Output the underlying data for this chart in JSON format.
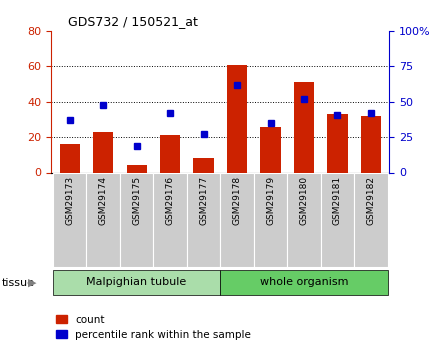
{
  "title": "GDS732 / 150521_at",
  "samples": [
    "GSM29173",
    "GSM29174",
    "GSM29175",
    "GSM29176",
    "GSM29177",
    "GSM29178",
    "GSM29179",
    "GSM29180",
    "GSM29181",
    "GSM29182"
  ],
  "counts": [
    16,
    23,
    4,
    21,
    8,
    61,
    26,
    51,
    33,
    32
  ],
  "percentiles": [
    37,
    48,
    19,
    42,
    27,
    62,
    35,
    52,
    41,
    42
  ],
  "bar_color": "#cc2200",
  "dot_color": "#0000cc",
  "left_ylim": [
    0,
    80
  ],
  "right_ylim": [
    0,
    100
  ],
  "left_yticks": [
    0,
    20,
    40,
    60,
    80
  ],
  "right_yticks": [
    0,
    25,
    50,
    75,
    100
  ],
  "right_yticklabels": [
    "0",
    "25",
    "50",
    "75",
    "100%"
  ],
  "tissue_groups": [
    {
      "label": "Malpighian tubule",
      "start": 0,
      "end": 5,
      "color": "#aaddaa"
    },
    {
      "label": "whole organism",
      "start": 5,
      "end": 10,
      "color": "#66cc66"
    }
  ],
  "tissue_label": "tissue",
  "legend_count_label": "count",
  "legend_pct_label": "percentile rank within the sample",
  "bar_color_legend": "#cc2200",
  "dot_color_legend": "#0000cc",
  "bar_width": 0.6,
  "label_box_color": "#cccccc",
  "spine_color": "#000000"
}
